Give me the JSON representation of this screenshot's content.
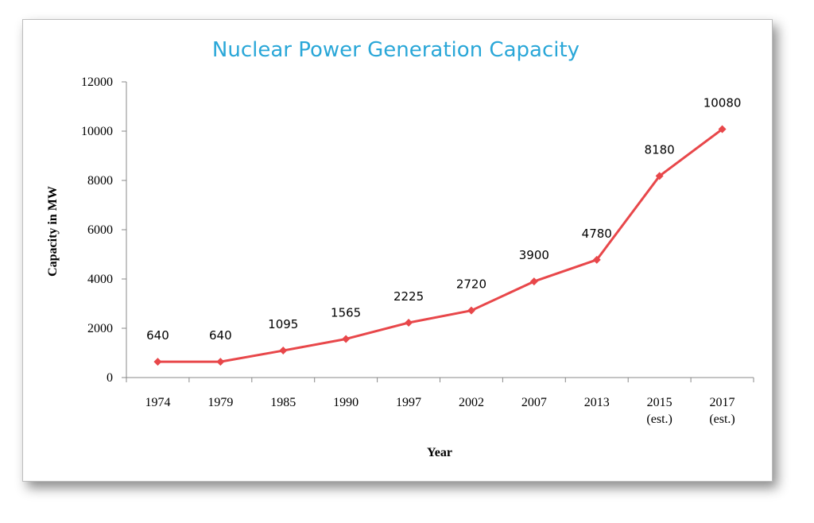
{
  "chart_data": {
    "type": "line",
    "title": "Nuclear Power Generation Capacity",
    "xlabel": "Year",
    "ylabel": "Capacity in MW",
    "categories": [
      [
        "1974"
      ],
      [
        "1979"
      ],
      [
        "1985"
      ],
      [
        "1990"
      ],
      [
        "1997"
      ],
      [
        "2002"
      ],
      [
        "2007"
      ],
      [
        "2013"
      ],
      [
        "2015",
        "(est.)"
      ],
      [
        "2017",
        "(est.)"
      ]
    ],
    "series": [
      {
        "values": [
          640,
          640,
          1095,
          1565,
          2225,
          2720,
          3900,
          4780,
          8180,
          10080
        ],
        "color": "#e8474a"
      }
    ],
    "data_labels": [
      "640",
      "640",
      "1095",
      "1565",
      "2225",
      "2720",
      "3900",
      "4780",
      "8180",
      "10080"
    ],
    "ylim": [
      0,
      12000
    ],
    "yticks": [
      "0",
      "2000",
      "4000",
      "6000",
      "8000",
      "10000",
      "12000"
    ],
    "grid": false,
    "legend": "none",
    "colors": {
      "title": "#2aa7d8",
      "line": "#e8474a",
      "axis": "#888888"
    }
  }
}
